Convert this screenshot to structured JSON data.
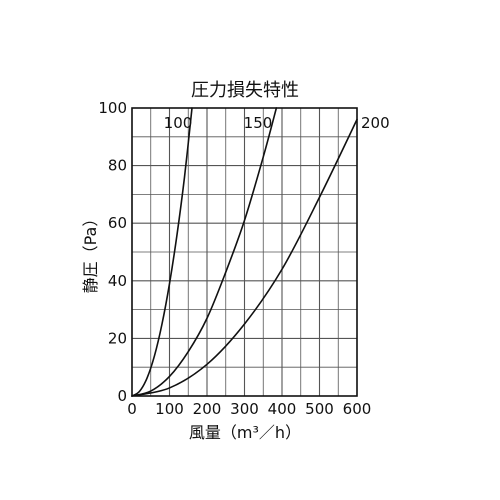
{
  "chart_data": {
    "type": "line",
    "title": "圧力損失特性",
    "xlabel": "風量（m³／h）",
    "ylabel": "静圧（Pa）",
    "xlim": [
      0,
      600
    ],
    "ylim": [
      0,
      100
    ],
    "x_ticks": [
      "0",
      "100",
      "200",
      "300",
      "400",
      "500",
      "600"
    ],
    "y_ticks": [
      "0",
      "20",
      "40",
      "60",
      "80",
      "100"
    ],
    "grid": true,
    "legend": "inline labels at curve ends",
    "series": [
      {
        "name": "100",
        "points": [
          [
            0,
            0
          ],
          [
            20,
            1.6
          ],
          [
            40,
            6.2
          ],
          [
            60,
            14
          ],
          [
            80,
            25
          ],
          [
            100,
            39
          ],
          [
            120,
            56
          ],
          [
            140,
            76
          ],
          [
            160,
            100
          ]
        ]
      },
      {
        "name": "150",
        "points": [
          [
            0,
            0
          ],
          [
            50,
            1.7
          ],
          [
            100,
            6.8
          ],
          [
            150,
            15.4
          ],
          [
            200,
            27
          ],
          [
            250,
            43
          ],
          [
            300,
            61
          ],
          [
            350,
            83
          ],
          [
            385,
            100
          ]
        ]
      },
      {
        "name": "200",
        "points": [
          [
            0,
            0
          ],
          [
            100,
            2.8
          ],
          [
            200,
            11
          ],
          [
            300,
            25
          ],
          [
            400,
            44
          ],
          [
            500,
            69
          ],
          [
            600,
            96
          ]
        ]
      }
    ]
  }
}
